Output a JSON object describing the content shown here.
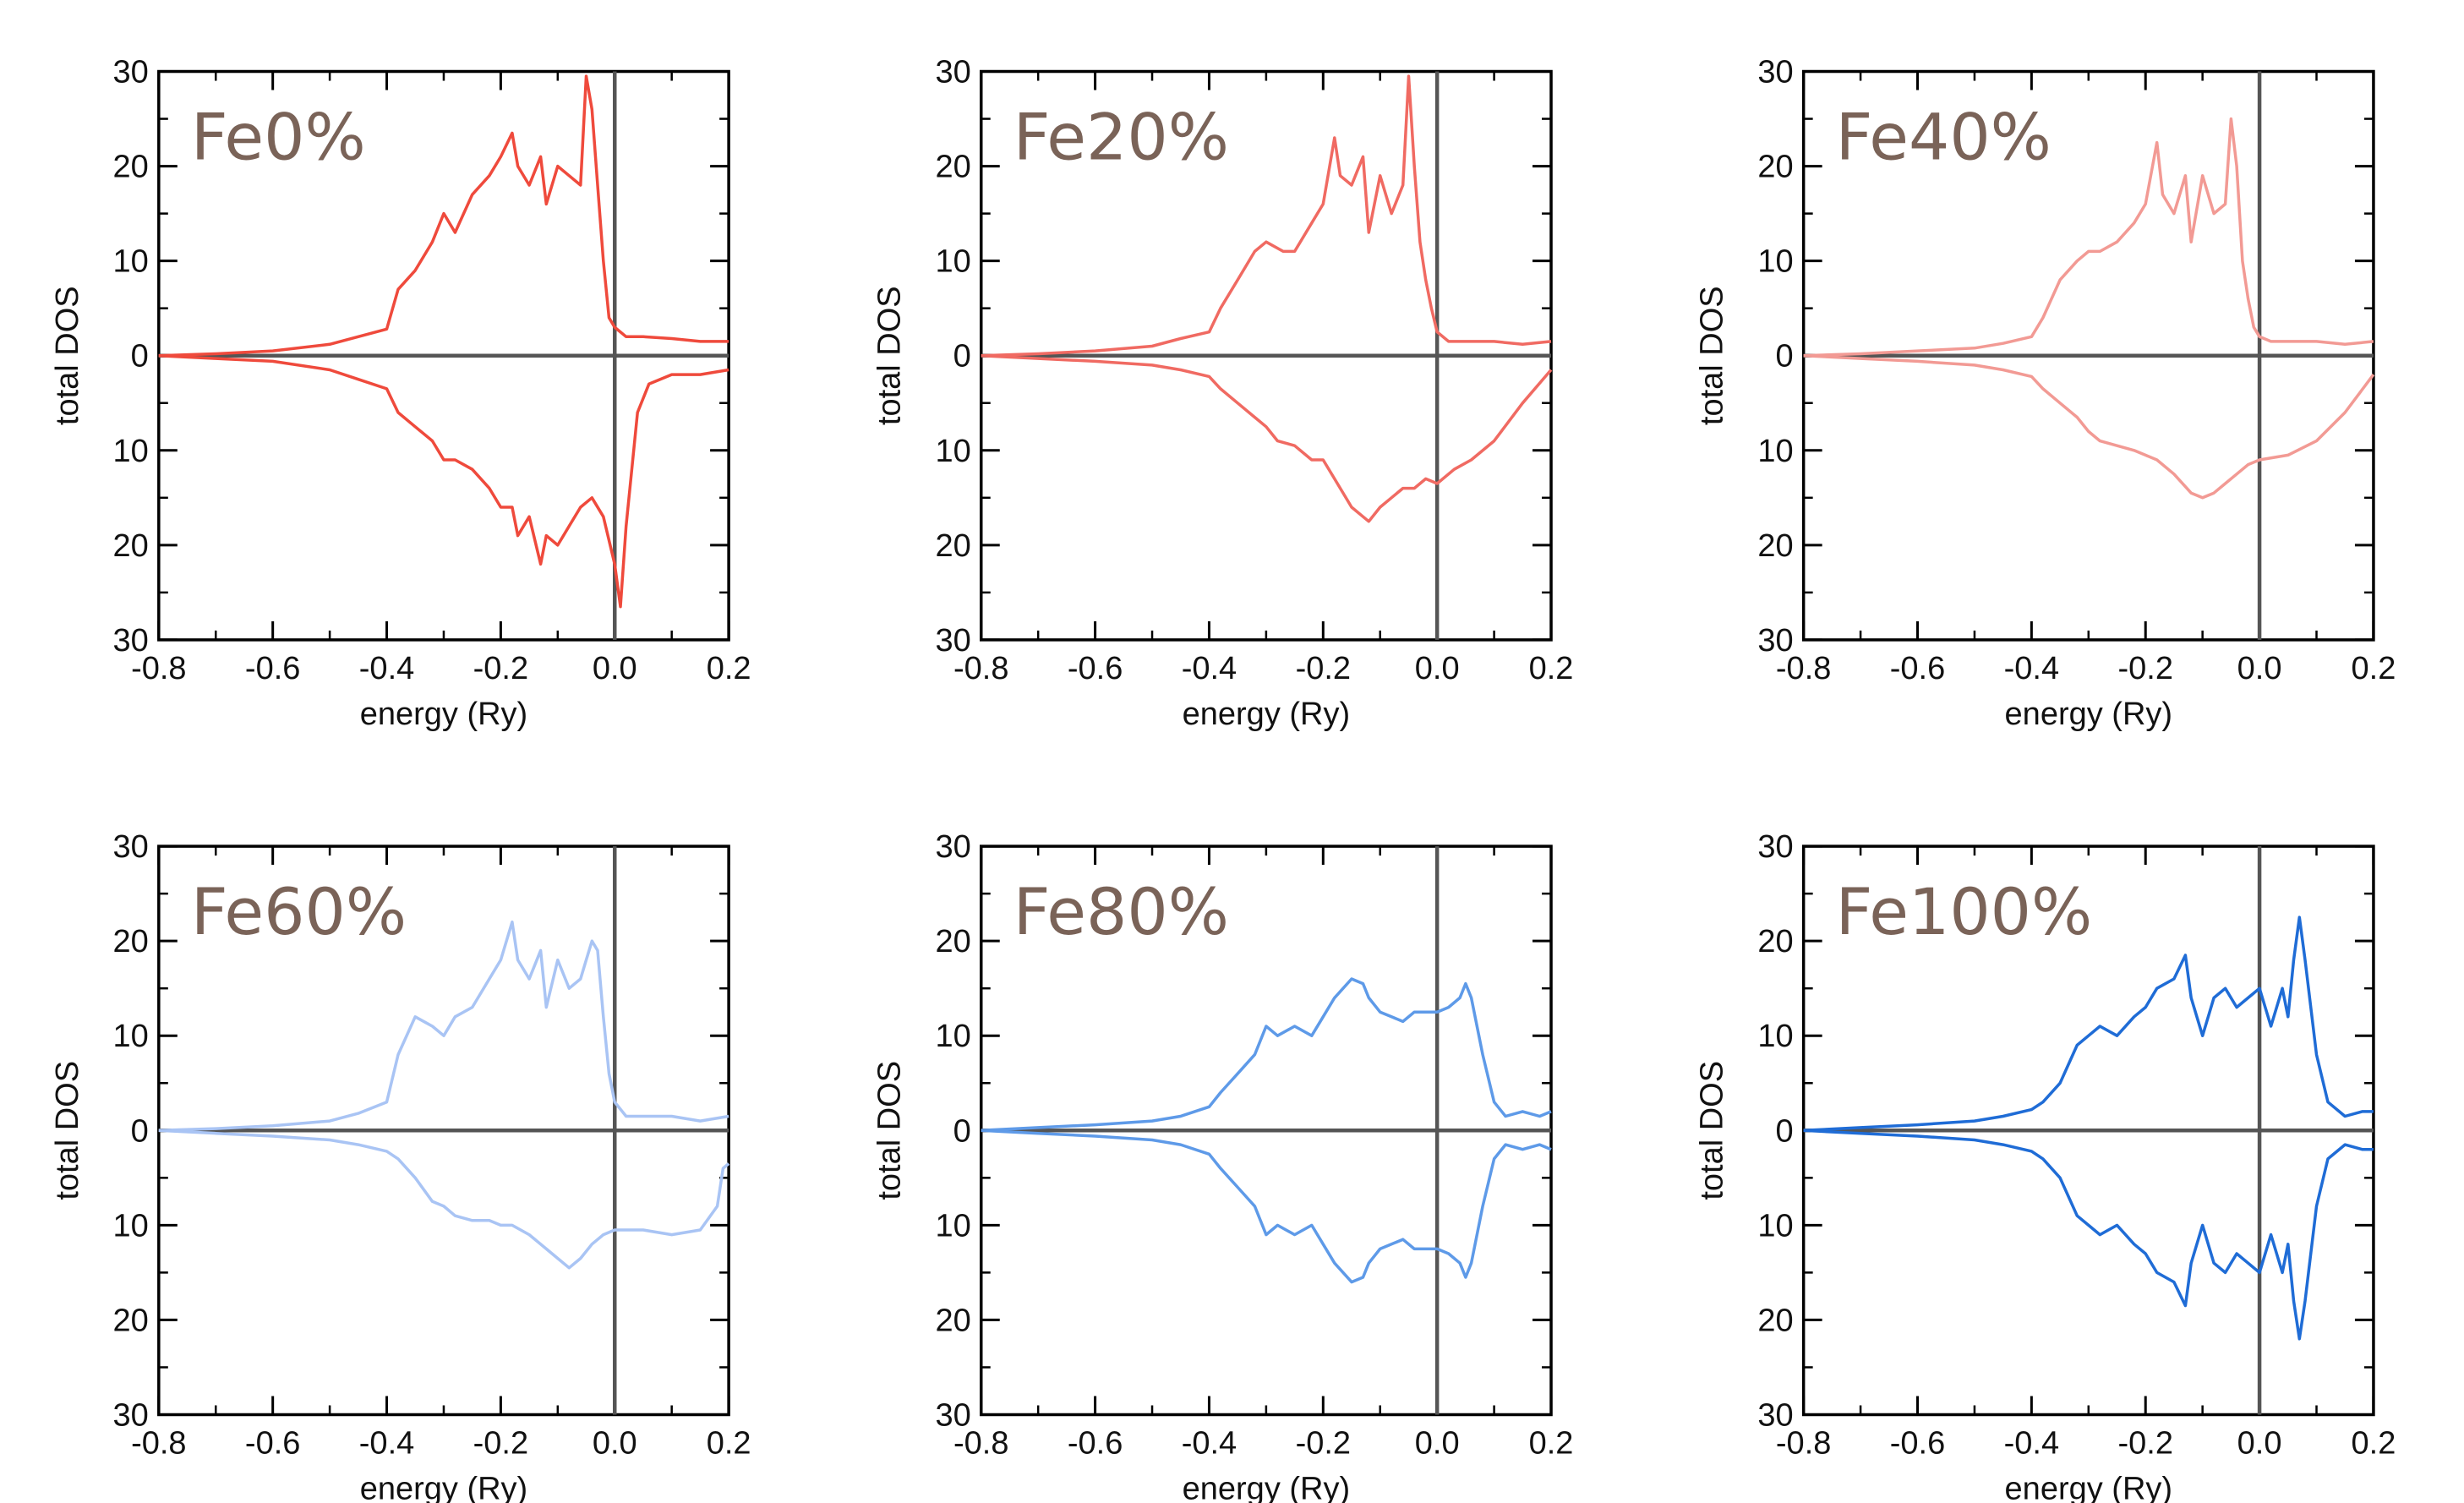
{
  "colors": {
    "axis": "#000000",
    "zero_lines": "#555555",
    "label": "#7a6358"
  },
  "charts": [
    {
      "label": "Fe0%",
      "xlabel": "energy (Ry)",
      "ylabel": "total DOS",
      "color": "#ef4a3c",
      "chart_data": {
        "type": "line",
        "xlim": [
          -0.8,
          0.2
        ],
        "ylim": [
          -30,
          30
        ],
        "xticks": [
          "-0.8",
          "-0.6",
          "-0.4",
          "-0.2",
          "0.0",
          "0.2"
        ],
        "yticks": [
          "30",
          "20",
          "10",
          "0",
          "10",
          "20",
          "30"
        ],
        "series": [
          {
            "x": [
              -0.8,
              -0.7,
              -0.6,
              -0.5,
              -0.45,
              -0.4,
              -0.38,
              -0.35,
              -0.32,
              -0.3,
              -0.28,
              -0.25,
              -0.22,
              -0.2,
              -0.18,
              -0.17,
              -0.15,
              -0.13,
              -0.12,
              -0.1,
              -0.08,
              -0.06,
              -0.05,
              -0.04,
              -0.03,
              -0.02,
              -0.01,
              0.0,
              0.02,
              0.05,
              0.1,
              0.15,
              0.2
            ],
            "y": [
              0,
              0.2,
              0.5,
              1.2,
              2,
              2.8,
              7,
              9,
              12,
              15,
              13,
              17,
              19,
              21,
              23.5,
              20,
              18,
              21,
              16,
              20,
              19,
              18,
              29.5,
              26,
              18,
              10,
              4,
              3,
              2,
              2,
              1.8,
              1.5,
              1.5
            ]
          },
          {
            "x": [
              -0.8,
              -0.7,
              -0.6,
              -0.5,
              -0.45,
              -0.4,
              -0.38,
              -0.35,
              -0.32,
              -0.3,
              -0.28,
              -0.25,
              -0.22,
              -0.2,
              -0.18,
              -0.17,
              -0.15,
              -0.13,
              -0.12,
              -0.1,
              -0.08,
              -0.06,
              -0.04,
              -0.02,
              0.0,
              0.01,
              0.02,
              0.04,
              0.06,
              0.1,
              0.15,
              0.2
            ],
            "y": [
              0,
              -0.3,
              -0.6,
              -1.5,
              -2.5,
              -3.5,
              -6,
              -7.5,
              -9,
              -11,
              -11,
              -12,
              -14,
              -16,
              -16,
              -19,
              -17,
              -22,
              -19,
              -20,
              -18,
              -16,
              -15,
              -17,
              -22,
              -26.5,
              -18,
              -6,
              -3,
              -2,
              -2,
              -1.5
            ]
          }
        ]
      }
    },
    {
      "label": "Fe20%",
      "xlabel": "energy (Ry)",
      "ylabel": "total DOS",
      "color": "#f06a62",
      "chart_data": {
        "type": "line",
        "xlim": [
          -0.8,
          0.2
        ],
        "ylim": [
          -30,
          30
        ],
        "xticks": [
          "-0.8",
          "-0.6",
          "-0.4",
          "-0.2",
          "0.0",
          "0.2"
        ],
        "yticks": [
          "30",
          "20",
          "10",
          "0",
          "10",
          "20",
          "30"
        ],
        "series": [
          {
            "x": [
              -0.8,
              -0.7,
              -0.6,
              -0.5,
              -0.45,
              -0.4,
              -0.38,
              -0.35,
              -0.32,
              -0.3,
              -0.27,
              -0.25,
              -0.22,
              -0.2,
              -0.18,
              -0.17,
              -0.15,
              -0.13,
              -0.12,
              -0.1,
              -0.08,
              -0.06,
              -0.05,
              -0.04,
              -0.03,
              -0.02,
              -0.01,
              0.0,
              0.02,
              0.05,
              0.1,
              0.15,
              0.2
            ],
            "y": [
              0,
              0.2,
              0.5,
              1,
              1.8,
              2.5,
              5,
              8,
              11,
              12,
              11,
              11,
              14,
              16,
              23,
              19,
              18,
              21,
              13,
              19,
              15,
              18,
              29.5,
              20,
              12,
              8,
              5,
              2.5,
              1.5,
              1.5,
              1.5,
              1.2,
              1.5
            ]
          },
          {
            "x": [
              -0.8,
              -0.7,
              -0.6,
              -0.5,
              -0.45,
              -0.4,
              -0.38,
              -0.35,
              -0.32,
              -0.3,
              -0.28,
              -0.25,
              -0.22,
              -0.2,
              -0.18,
              -0.15,
              -0.13,
              -0.12,
              -0.1,
              -0.08,
              -0.06,
              -0.04,
              -0.02,
              0.0,
              0.03,
              0.06,
              0.1,
              0.15,
              0.2
            ],
            "y": [
              0,
              -0.3,
              -0.6,
              -1,
              -1.5,
              -2.2,
              -3.5,
              -5,
              -6.5,
              -7.5,
              -9,
              -9.5,
              -11,
              -11,
              -13,
              -16,
              -17,
              -17.5,
              -16,
              -15,
              -14,
              -14,
              -13,
              -13.5,
              -12,
              -11,
              -9,
              -5,
              -1.5
            ]
          }
        ]
      }
    },
    {
      "label": "Fe40%",
      "xlabel": "energy (Ry)",
      "ylabel": "total DOS",
      "color": "#f29a94",
      "chart_data": {
        "type": "line",
        "xlim": [
          -0.8,
          0.2
        ],
        "ylim": [
          -30,
          30
        ],
        "xticks": [
          "-0.8",
          "-0.6",
          "-0.4",
          "-0.2",
          "0.0",
          "0.2"
        ],
        "yticks": [
          "30",
          "20",
          "10",
          "0",
          "10",
          "20",
          "30"
        ],
        "series": [
          {
            "x": [
              -0.8,
              -0.7,
              -0.6,
              -0.5,
              -0.45,
              -0.4,
              -0.38,
              -0.35,
              -0.32,
              -0.3,
              -0.28,
              -0.25,
              -0.22,
              -0.2,
              -0.18,
              -0.17,
              -0.15,
              -0.13,
              -0.12,
              -0.1,
              -0.08,
              -0.06,
              -0.05,
              -0.04,
              -0.03,
              -0.02,
              -0.01,
              0.0,
              0.02,
              0.05,
              0.1,
              0.15,
              0.2
            ],
            "y": [
              0,
              0.2,
              0.5,
              0.8,
              1.3,
              2,
              4,
              8,
              10,
              11,
              11,
              12,
              14,
              16,
              22.5,
              17,
              15,
              19,
              12,
              19,
              15,
              16,
              25,
              20,
              10,
              6,
              3,
              2,
              1.5,
              1.5,
              1.5,
              1.2,
              1.5
            ]
          },
          {
            "x": [
              -0.8,
              -0.7,
              -0.6,
              -0.5,
              -0.45,
              -0.4,
              -0.38,
              -0.35,
              -0.32,
              -0.3,
              -0.28,
              -0.25,
              -0.22,
              -0.2,
              -0.18,
              -0.15,
              -0.12,
              -0.1,
              -0.08,
              -0.06,
              -0.04,
              -0.02,
              0.0,
              0.05,
              0.1,
              0.15,
              0.2
            ],
            "y": [
              0,
              -0.3,
              -0.6,
              -1,
              -1.5,
              -2.2,
              -3.5,
              -5,
              -6.5,
              -8,
              -9,
              -9.5,
              -10,
              -10.5,
              -11,
              -12.5,
              -14.5,
              -15,
              -14.5,
              -13.5,
              -12.5,
              -11.5,
              -11,
              -10.5,
              -9,
              -6,
              -2
            ]
          }
        ]
      }
    },
    {
      "label": "Fe60%",
      "xlabel": "energy (Ry)",
      "ylabel": "total DOS",
      "color": "#a9c4f4",
      "chart_data": {
        "type": "line",
        "xlim": [
          -0.8,
          0.2
        ],
        "ylim": [
          -30,
          30
        ],
        "xticks": [
          "-0.8",
          "-0.6",
          "-0.4",
          "-0.2",
          "0.0",
          "0.2"
        ],
        "yticks": [
          "30",
          "20",
          "10",
          "0",
          "10",
          "20",
          "30"
        ],
        "series": [
          {
            "x": [
              -0.8,
              -0.7,
              -0.6,
              -0.5,
              -0.45,
              -0.4,
              -0.38,
              -0.35,
              -0.32,
              -0.3,
              -0.28,
              -0.25,
              -0.22,
              -0.2,
              -0.18,
              -0.17,
              -0.15,
              -0.13,
              -0.12,
              -0.1,
              -0.08,
              -0.06,
              -0.05,
              -0.04,
              -0.03,
              -0.02,
              -0.01,
              0.0,
              0.02,
              0.05,
              0.1,
              0.15,
              0.2
            ],
            "y": [
              0,
              0.2,
              0.5,
              1,
              1.8,
              3,
              8,
              12,
              11,
              10,
              12,
              13,
              16,
              18,
              22,
              18,
              16,
              19,
              13,
              18,
              15,
              16,
              18,
              20,
              19,
              12,
              6,
              3,
              1.5,
              1.5,
              1.5,
              1,
              1.5
            ]
          },
          {
            "x": [
              -0.8,
              -0.7,
              -0.6,
              -0.5,
              -0.45,
              -0.4,
              -0.38,
              -0.35,
              -0.32,
              -0.3,
              -0.28,
              -0.25,
              -0.22,
              -0.2,
              -0.18,
              -0.15,
              -0.12,
              -0.1,
              -0.08,
              -0.06,
              -0.04,
              -0.02,
              0.0,
              0.05,
              0.1,
              0.15,
              0.18,
              0.19,
              0.2
            ],
            "y": [
              0,
              -0.3,
              -0.6,
              -1,
              -1.5,
              -2.2,
              -3,
              -5,
              -7.5,
              -8,
              -9,
              -9.5,
              -9.5,
              -10,
              -10,
              -11,
              -12.5,
              -13.5,
              -14.5,
              -13.5,
              -12,
              -11,
              -10.5,
              -10.5,
              -11,
              -10.5,
              -8,
              -4,
              -3.5
            ]
          }
        ]
      }
    },
    {
      "label": "Fe80%",
      "xlabel": "energy (Ry)",
      "ylabel": "total DOS",
      "color": "#5e9ae8",
      "chart_data": {
        "type": "line",
        "xlim": [
          -0.8,
          0.2
        ],
        "ylim": [
          -30,
          30
        ],
        "xticks": [
          "-0.8",
          "-0.6",
          "-0.4",
          "-0.2",
          "0.0",
          "0.2"
        ],
        "yticks": [
          "30",
          "20",
          "10",
          "0",
          "10",
          "20",
          "30"
        ],
        "series": [
          {
            "x": [
              -0.8,
              -0.7,
              -0.6,
              -0.5,
              -0.45,
              -0.4,
              -0.38,
              -0.35,
              -0.32,
              -0.3,
              -0.28,
              -0.25,
              -0.22,
              -0.2,
              -0.18,
              -0.15,
              -0.13,
              -0.12,
              -0.1,
              -0.08,
              -0.06,
              -0.04,
              -0.02,
              0.0,
              0.02,
              0.04,
              0.05,
              0.06,
              0.08,
              0.1,
              0.12,
              0.15,
              0.18,
              0.2
            ],
            "y": [
              0,
              0.3,
              0.6,
              1,
              1.5,
              2.5,
              4,
              6,
              8,
              11,
              10,
              11,
              10,
              12,
              14,
              16,
              15.5,
              14,
              12.5,
              12,
              11.5,
              12.5,
              12.5,
              12.5,
              13,
              14,
              15.5,
              14,
              8,
              3,
              1.5,
              2,
              1.5,
              2
            ]
          },
          {
            "x": [
              -0.8,
              -0.7,
              -0.6,
              -0.5,
              -0.45,
              -0.4,
              -0.38,
              -0.35,
              -0.32,
              -0.3,
              -0.28,
              -0.25,
              -0.22,
              -0.2,
              -0.18,
              -0.15,
              -0.13,
              -0.12,
              -0.1,
              -0.08,
              -0.06,
              -0.04,
              -0.02,
              0.0,
              0.02,
              0.04,
              0.05,
              0.06,
              0.08,
              0.1,
              0.12,
              0.15,
              0.18,
              0.2
            ],
            "y": [
              0,
              -0.3,
              -0.6,
              -1,
              -1.5,
              -2.5,
              -4,
              -6,
              -8,
              -11,
              -10,
              -11,
              -10,
              -12,
              -14,
              -16,
              -15.5,
              -14,
              -12.5,
              -12,
              -11.5,
              -12.5,
              -12.5,
              -12.5,
              -13,
              -14,
              -15.5,
              -14,
              -8,
              -3,
              -1.5,
              -2,
              -1.5,
              -2
            ]
          }
        ]
      }
    },
    {
      "label": "Fe100%",
      "xlabel": "energy (Ry)",
      "ylabel": "total DOS",
      "color": "#1f6cd6",
      "chart_data": {
        "type": "line",
        "xlim": [
          -0.8,
          0.2
        ],
        "ylim": [
          -30,
          30
        ],
        "xticks": [
          "-0.8",
          "-0.6",
          "-0.4",
          "-0.2",
          "0.0",
          "0.2"
        ],
        "yticks": [
          "30",
          "20",
          "10",
          "0",
          "10",
          "20",
          "30"
        ],
        "series": [
          {
            "x": [
              -0.8,
              -0.7,
              -0.6,
              -0.5,
              -0.45,
              -0.4,
              -0.38,
              -0.35,
              -0.32,
              -0.3,
              -0.28,
              -0.25,
              -0.22,
              -0.2,
              -0.18,
              -0.15,
              -0.13,
              -0.12,
              -0.1,
              -0.08,
              -0.06,
              -0.04,
              -0.02,
              0.0,
              0.02,
              0.04,
              0.05,
              0.06,
              0.07,
              0.08,
              0.1,
              0.12,
              0.15,
              0.18,
              0.2
            ],
            "y": [
              0,
              0.3,
              0.6,
              1,
              1.5,
              2.2,
              3,
              5,
              9,
              10,
              11,
              10,
              12,
              13,
              15,
              16,
              18.5,
              14,
              10,
              14,
              15,
              13,
              14,
              15,
              11,
              15,
              12,
              18,
              22.5,
              18,
              8,
              3,
              1.5,
              2,
              2
            ]
          },
          {
            "x": [
              -0.8,
              -0.7,
              -0.6,
              -0.5,
              -0.45,
              -0.4,
              -0.38,
              -0.35,
              -0.32,
              -0.3,
              -0.28,
              -0.25,
              -0.22,
              -0.2,
              -0.18,
              -0.15,
              -0.13,
              -0.12,
              -0.1,
              -0.08,
              -0.06,
              -0.04,
              -0.02,
              0.0,
              0.02,
              0.04,
              0.05,
              0.06,
              0.07,
              0.08,
              0.1,
              0.12,
              0.15,
              0.18,
              0.2
            ],
            "y": [
              0,
              -0.3,
              -0.6,
              -1,
              -1.5,
              -2.2,
              -3,
              -5,
              -9,
              -10,
              -11,
              -10,
              -12,
              -13,
              -15,
              -16,
              -18.5,
              -14,
              -10,
              -14,
              -15,
              -13,
              -14,
              -15,
              -11,
              -15,
              -12,
              -18,
              -22,
              -18,
              -8,
              -3,
              -1.5,
              -2,
              -2
            ]
          }
        ]
      }
    }
  ]
}
